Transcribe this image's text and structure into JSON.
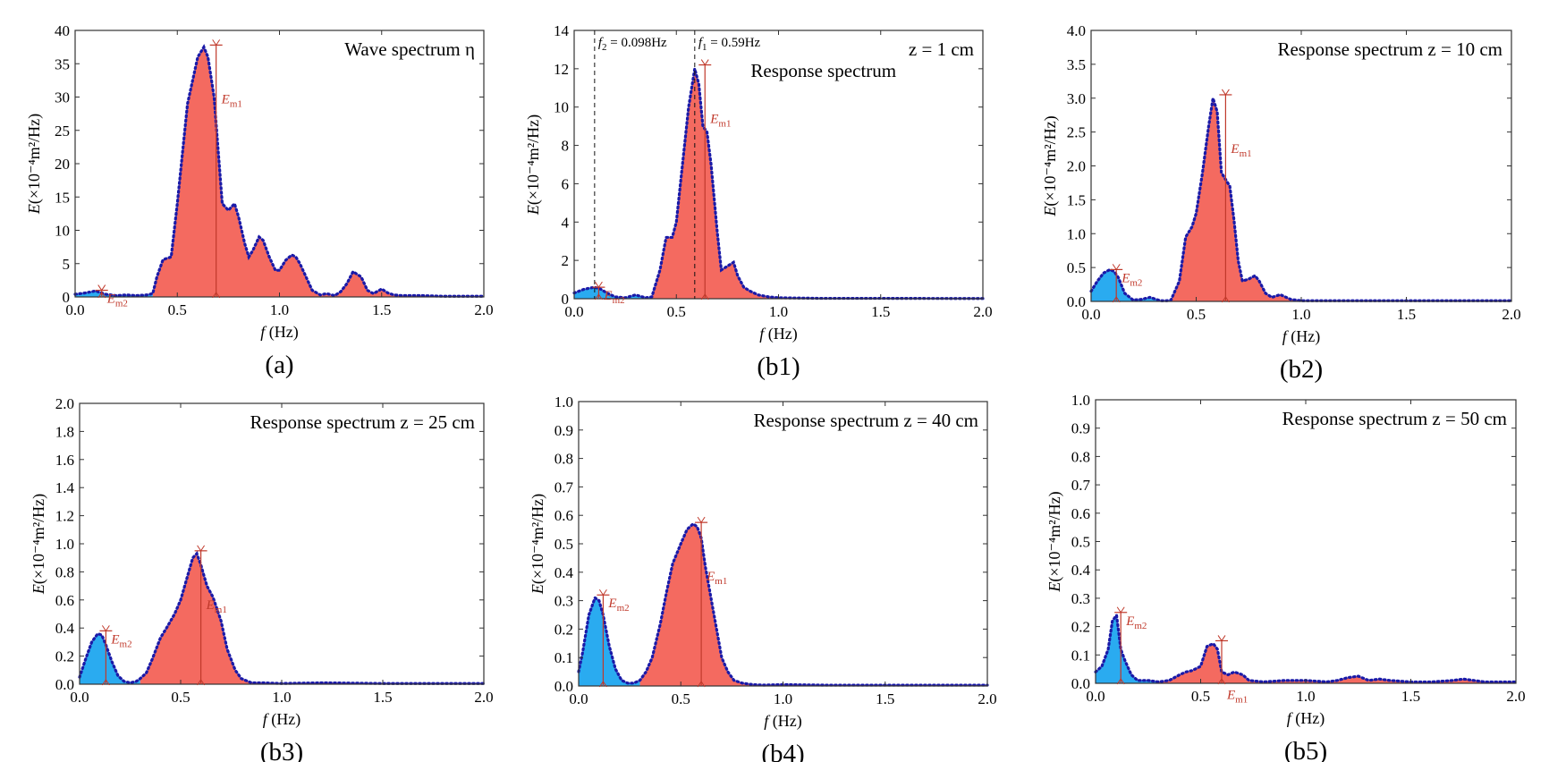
{
  "colors": {
    "red_fill": "#f46a60",
    "blue_fill": "#2aabf0",
    "outline": "#1a1aa8",
    "annotation": "#c0392b"
  },
  "chart_data": [
    {
      "id": "a",
      "type": "area",
      "panel_label": "(a)",
      "title": "Wave spectrum η",
      "xlabel": "f (Hz)",
      "ylabel": "E(×10⁻⁴m²/Hz)",
      "xlim": [
        0,
        2
      ],
      "ylim": [
        0,
        40
      ],
      "xticks": [
        "0.0",
        "0.5",
        "1.0",
        "1.5",
        "2.0"
      ],
      "yticks": [
        "0",
        "5",
        "10",
        "15",
        "20",
        "25",
        "30",
        "35",
        "40"
      ],
      "split_f": 0.38,
      "x": [
        0,
        0.05,
        0.1,
        0.15,
        0.2,
        0.25,
        0.3,
        0.35,
        0.38,
        0.4,
        0.43,
        0.47,
        0.5,
        0.55,
        0.6,
        0.63,
        0.65,
        0.68,
        0.7,
        0.72,
        0.75,
        0.78,
        0.8,
        0.83,
        0.85,
        0.87,
        0.9,
        0.92,
        0.95,
        0.98,
        1.0,
        1.03,
        1.06,
        1.08,
        1.1,
        1.13,
        1.16,
        1.2,
        1.23,
        1.27,
        1.3,
        1.33,
        1.36,
        1.4,
        1.43,
        1.46,
        1.5,
        1.53,
        1.56,
        1.6,
        1.65,
        1.7,
        1.8,
        1.9,
        2.0
      ],
      "y": [
        0.4,
        0.6,
        0.9,
        0.4,
        0.2,
        0.3,
        0.2,
        0.3,
        0.5,
        3,
        5.6,
        6,
        14,
        29,
        36,
        37.5,
        36,
        30,
        22,
        14,
        13,
        14,
        12,
        8,
        6,
        7,
        9,
        8.5,
        6,
        4,
        4,
        5.5,
        6.3,
        6,
        5,
        3,
        1,
        0.3,
        0.5,
        0.2,
        0.8,
        2,
        3.8,
        3,
        1,
        0.5,
        1.2,
        0.6,
        0.3,
        0.2,
        0.2,
        0.2,
        0.1,
        0.1,
        0.1
      ],
      "markers": [
        {
          "label": "Em1",
          "f": 0.69,
          "E": 37.8
        },
        {
          "label": "Em2",
          "f": 0.13,
          "E": 1.0
        }
      ]
    },
    {
      "id": "b1",
      "type": "area",
      "panel_label": "(b1)",
      "title": "z = 1 cm",
      "subtitle": "Response spectrum",
      "xlabel": "f (Hz)",
      "ylabel": "E(×10⁻⁴m²/Hz)",
      "xlim": [
        0,
        2
      ],
      "ylim": [
        0,
        14
      ],
      "xticks": [
        "0.0",
        "0.5",
        "1.0",
        "1.5",
        "2.0"
      ],
      "yticks": [
        "0",
        "2",
        "4",
        "6",
        "8",
        "10",
        "12",
        "14"
      ],
      "split_f": 0.38,
      "x": [
        0,
        0.05,
        0.1,
        0.13,
        0.16,
        0.2,
        0.25,
        0.3,
        0.35,
        0.38,
        0.42,
        0.45,
        0.48,
        0.5,
        0.53,
        0.56,
        0.59,
        0.61,
        0.63,
        0.65,
        0.67,
        0.7,
        0.72,
        0.75,
        0.78,
        0.8,
        0.83,
        0.86,
        0.9,
        0.95,
        1.0,
        1.2,
        1.5,
        2.0
      ],
      "y": [
        0.3,
        0.5,
        0.6,
        0.5,
        0.3,
        0.1,
        0.05,
        0.2,
        0.05,
        0.1,
        1.5,
        3.2,
        3.2,
        4,
        7,
        10,
        12,
        11.2,
        9,
        8.7,
        7,
        3.5,
        1.5,
        1.7,
        1.9,
        1.2,
        0.6,
        0.4,
        0.2,
        0.1,
        0.05,
        0.02,
        0.02,
        0.01
      ],
      "vlines": [
        {
          "label": "f2 = 0.098Hz",
          "f": 0.1
        },
        {
          "label": "f1 = 0.59Hz",
          "f": 0.59
        }
      ],
      "markers": [
        {
          "label": "Em1",
          "f": 0.64,
          "E": 12.2
        },
        {
          "label": "Em2",
          "f": 0.12,
          "E": 0.6
        }
      ]
    },
    {
      "id": "b2",
      "type": "area",
      "panel_label": "(b2)",
      "title": "Response spectrum z = 10 cm",
      "xlabel": "f (Hz)",
      "ylabel": "E(×10⁻⁴m²/Hz)",
      "xlim": [
        0,
        2
      ],
      "ylim": [
        0,
        4
      ],
      "xticks": [
        "0.0",
        "0.5",
        "1.0",
        "1.5",
        "2.0"
      ],
      "yticks": [
        "0.0",
        "0.5",
        "1.0",
        "1.5",
        "2.0",
        "2.5",
        "3.0",
        "3.5",
        "4.0"
      ],
      "split_f": 0.38,
      "x": [
        0,
        0.03,
        0.06,
        0.09,
        0.11,
        0.13,
        0.16,
        0.2,
        0.24,
        0.28,
        0.3,
        0.33,
        0.36,
        0.38,
        0.42,
        0.45,
        0.48,
        0.5,
        0.53,
        0.56,
        0.58,
        0.6,
        0.62,
        0.64,
        0.66,
        0.68,
        0.7,
        0.72,
        0.75,
        0.78,
        0.8,
        0.83,
        0.86,
        0.9,
        0.95,
        1.0,
        1.2,
        1.5,
        2.0
      ],
      "y": [
        0.15,
        0.3,
        0.42,
        0.47,
        0.44,
        0.35,
        0.12,
        0.02,
        0.03,
        0.06,
        0.04,
        0.01,
        0.01,
        0.02,
        0.3,
        0.95,
        1.1,
        1.3,
        1.9,
        2.6,
        3.0,
        2.8,
        1.9,
        1.8,
        1.7,
        1.2,
        0.6,
        0.3,
        0.33,
        0.38,
        0.3,
        0.12,
        0.06,
        0.1,
        0.03,
        0.01,
        0.01,
        0.01,
        0.01
      ],
      "markers": [
        {
          "label": "Em1",
          "f": 0.64,
          "E": 3.05
        },
        {
          "label": "Em2",
          "f": 0.12,
          "E": 0.47
        }
      ]
    },
    {
      "id": "b3",
      "type": "area",
      "panel_label": "(b3)",
      "title": "Response spectrum z = 25 cm",
      "xlabel": "f (Hz)",
      "ylabel": "E(×10⁻⁴m²/Hz)",
      "xlim": [
        0,
        2
      ],
      "ylim": [
        0,
        2
      ],
      "xticks": [
        "0.0",
        "0.5",
        "1.0",
        "1.5",
        "2.0"
      ],
      "yticks": [
        "0.0",
        "0.2",
        "0.4",
        "0.6",
        "0.8",
        "1.0",
        "1.2",
        "1.4",
        "1.6",
        "1.8",
        "2.0"
      ],
      "split_f": 0.3,
      "x": [
        0,
        0.03,
        0.06,
        0.09,
        0.11,
        0.13,
        0.16,
        0.19,
        0.22,
        0.25,
        0.28,
        0.3,
        0.33,
        0.36,
        0.4,
        0.43,
        0.47,
        0.5,
        0.53,
        0.56,
        0.58,
        0.6,
        0.63,
        0.66,
        0.7,
        0.73,
        0.77,
        0.8,
        0.85,
        0.9,
        1.0,
        1.2,
        1.5,
        2.0
      ],
      "y": [
        0.05,
        0.18,
        0.3,
        0.36,
        0.35,
        0.28,
        0.16,
        0.06,
        0.02,
        0.01,
        0.02,
        0.04,
        0.08,
        0.18,
        0.33,
        0.4,
        0.5,
        0.6,
        0.75,
        0.9,
        0.93,
        0.85,
        0.7,
        0.62,
        0.45,
        0.25,
        0.1,
        0.04,
        0.01,
        0.01,
        0.005,
        0.01,
        0.005,
        0.005
      ],
      "markers": [
        {
          "label": "Em1",
          "f": 0.6,
          "E": 0.95
        },
        {
          "label": "Em2",
          "f": 0.13,
          "E": 0.38
        }
      ]
    },
    {
      "id": "b4",
      "type": "area",
      "panel_label": "(b4)",
      "title": "Response spectrum z = 40 cm",
      "xlabel": "f (Hz)",
      "ylabel": "E(×10⁻⁴m²/Hz)",
      "xlim": [
        0,
        2
      ],
      "ylim": [
        0,
        1
      ],
      "xticks": [
        "0.0",
        "0.5",
        "1.0",
        "1.5",
        "2.0"
      ],
      "yticks": [
        "0.0",
        "0.1",
        "0.2",
        "0.3",
        "0.4",
        "0.5",
        "0.6",
        "0.7",
        "0.8",
        "0.9",
        "1.0"
      ],
      "split_f": 0.3,
      "x": [
        0,
        0.02,
        0.05,
        0.08,
        0.1,
        0.12,
        0.15,
        0.18,
        0.21,
        0.24,
        0.27,
        0.3,
        0.33,
        0.36,
        0.4,
        0.43,
        0.46,
        0.5,
        0.53,
        0.56,
        0.58,
        0.6,
        0.62,
        0.65,
        0.68,
        0.7,
        0.73,
        0.76,
        0.8,
        0.85,
        0.9,
        1.0,
        1.2,
        1.5,
        2.0
      ],
      "y": [
        0.05,
        0.12,
        0.25,
        0.31,
        0.3,
        0.25,
        0.14,
        0.06,
        0.02,
        0.01,
        0.01,
        0.02,
        0.05,
        0.1,
        0.22,
        0.33,
        0.43,
        0.5,
        0.55,
        0.57,
        0.56,
        0.52,
        0.42,
        0.3,
        0.18,
        0.1,
        0.05,
        0.02,
        0.01,
        0.005,
        0.003,
        0.005,
        0.003,
        0.003,
        0.003
      ],
      "markers": [
        {
          "label": "Em1",
          "f": 0.6,
          "E": 0.575
        },
        {
          "label": "Em2",
          "f": 0.12,
          "E": 0.32
        }
      ]
    },
    {
      "id": "b5",
      "type": "area",
      "panel_label": "(b5)",
      "title": "Response spectrum z = 50 cm",
      "xlabel": "f (Hz)",
      "ylabel": "E(×10⁻⁴m²/Hz)",
      "xlim": [
        0,
        2
      ],
      "ylim": [
        0,
        1
      ],
      "xticks": [
        "0.0",
        "0.5",
        "1.0",
        "1.5",
        "2.0"
      ],
      "yticks": [
        "0.0",
        "0.1",
        "0.2",
        "0.3",
        "0.4",
        "0.5",
        "0.6",
        "0.7",
        "0.8",
        "0.9",
        "1.0"
      ],
      "split_f": 0.3,
      "x": [
        0,
        0.03,
        0.06,
        0.08,
        0.1,
        0.12,
        0.14,
        0.17,
        0.2,
        0.25,
        0.3,
        0.35,
        0.4,
        0.43,
        0.46,
        0.5,
        0.53,
        0.56,
        0.58,
        0.6,
        0.63,
        0.66,
        0.7,
        0.73,
        0.8,
        0.9,
        1.0,
        1.1,
        1.15,
        1.2,
        1.25,
        1.3,
        1.35,
        1.4,
        1.5,
        1.6,
        1.7,
        1.75,
        1.8,
        1.85,
        1.9,
        2.0
      ],
      "y": [
        0.04,
        0.06,
        0.12,
        0.22,
        0.24,
        0.12,
        0.08,
        0.03,
        0.01,
        0.01,
        0.005,
        0.01,
        0.03,
        0.04,
        0.045,
        0.06,
        0.13,
        0.14,
        0.12,
        0.04,
        0.03,
        0.04,
        0.03,
        0.01,
        0.005,
        0.01,
        0.01,
        0.005,
        0.01,
        0.02,
        0.025,
        0.01,
        0.015,
        0.01,
        0.005,
        0.005,
        0.01,
        0.015,
        0.01,
        0.005,
        0.005,
        0.005
      ],
      "markers": [
        {
          "label": "Em1",
          "f": 0.6,
          "E": 0.15
        },
        {
          "label": "Em2",
          "f": 0.12,
          "E": 0.25
        }
      ]
    }
  ]
}
